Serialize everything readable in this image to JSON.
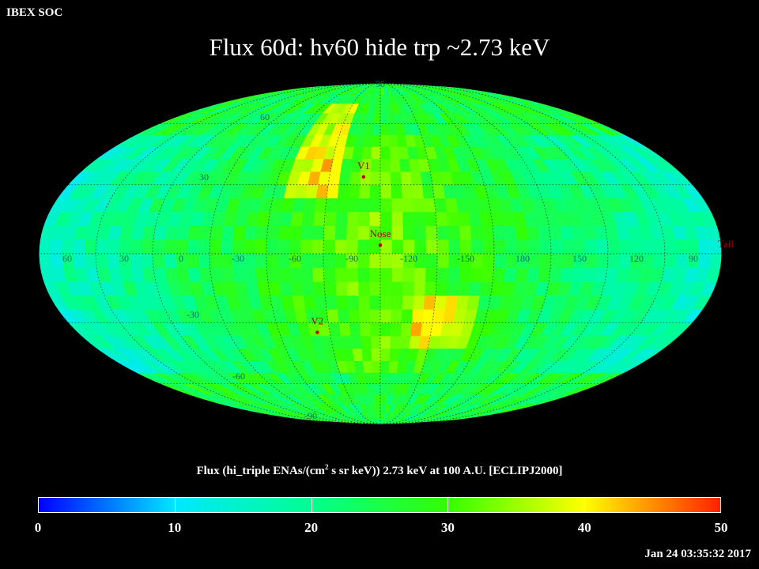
{
  "header": {
    "label": "IBEX SOC"
  },
  "title": "Flux   60d: hv60 hide trp ~2.73 keV",
  "flux_label": {
    "before_sup": "Flux (hi_triple ENAs/(cm",
    "sup": "2",
    "after_sup": " s sr keV))  2.73 keV at 100 A.U. [ECLIPJ2000]"
  },
  "timestamp": "Jan 24 03:35:32 2017",
  "chart_data": {
    "type": "heatmap",
    "projection": "mollweide",
    "coordinate_frame": "ECLIPJ2000",
    "lon_labels": [
      "60",
      "30",
      "0",
      "-30",
      "-60",
      "-90",
      "-120",
      "-150",
      "180",
      "150",
      "120",
      "90"
    ],
    "lat_labels": [
      "90",
      "60",
      "30",
      "-30",
      "-60",
      "-90"
    ],
    "markers": [
      {
        "name": "V1",
        "lon": -95,
        "lat": 35
      },
      {
        "name": "Nose",
        "lon": -105,
        "lat": 5
      },
      {
        "name": "V2",
        "lon": -68,
        "lat": -33
      },
      {
        "name": "Tail",
        "lon": 75,
        "lat": 0
      }
    ],
    "colorbar": {
      "ticks": [
        "0",
        "10",
        "20",
        "30",
        "40",
        "50"
      ],
      "range": [
        0,
        50
      ],
      "colors": [
        "#0000ff",
        "#00e8ff",
        "#00ff90",
        "#33ff00",
        "#ffff00",
        "#ff2000"
      ]
    },
    "value_range": [
      0,
      50
    ],
    "n_lon_bins": 60,
    "n_lat_bins": 30
  }
}
